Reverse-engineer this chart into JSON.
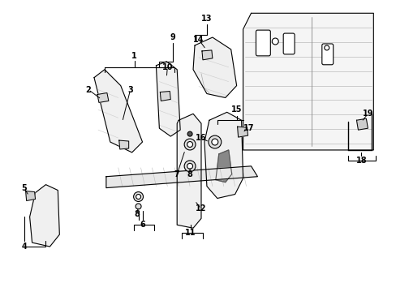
{
  "bg_color": "#ffffff",
  "fig_width": 4.89,
  "fig_height": 3.6,
  "dpi": 100,
  "lc": "#000000",
  "lw": 0.8,
  "label_fs": 7.0
}
